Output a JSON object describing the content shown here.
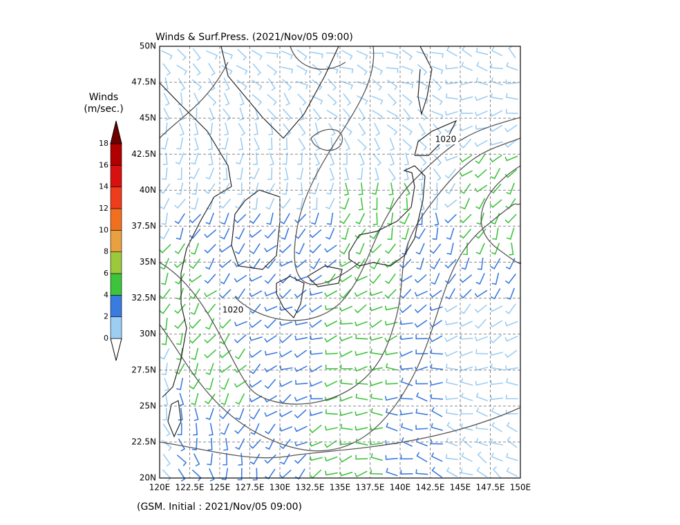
{
  "title": "Winds & Surf.Press. (2021/Nov/05 09:00)",
  "footer": "(GSM. Initial : 2021/Nov/05 09:00)",
  "map": {
    "lon_labels": [
      "120E",
      "122.5E",
      "125E",
      "127.5E",
      "130E",
      "132.5E",
      "135E",
      "137.5E",
      "140E",
      "142.5E",
      "145E",
      "147.5E",
      "150E"
    ],
    "lat_labels": [
      "20N",
      "22.5N",
      "25N",
      "27.5N",
      "30N",
      "32.5N",
      "35N",
      "37.5N",
      "40N",
      "42.5N",
      "45N",
      "47.5N",
      "50N"
    ],
    "contour_labels": [
      "1020",
      "1020"
    ]
  },
  "colorbar": {
    "title": "Winds",
    "unit": "(m/sec.)",
    "levels": [
      0,
      2,
      4,
      6,
      8,
      10,
      12,
      14,
      16,
      18
    ],
    "colors": [
      "#9ccdf2",
      "#3a7be0",
      "#3cc43c",
      "#9cc83c",
      "#e8a040",
      "#f07020",
      "#ee3c1c",
      "#d81010",
      "#b00000",
      "#700000"
    ]
  }
}
